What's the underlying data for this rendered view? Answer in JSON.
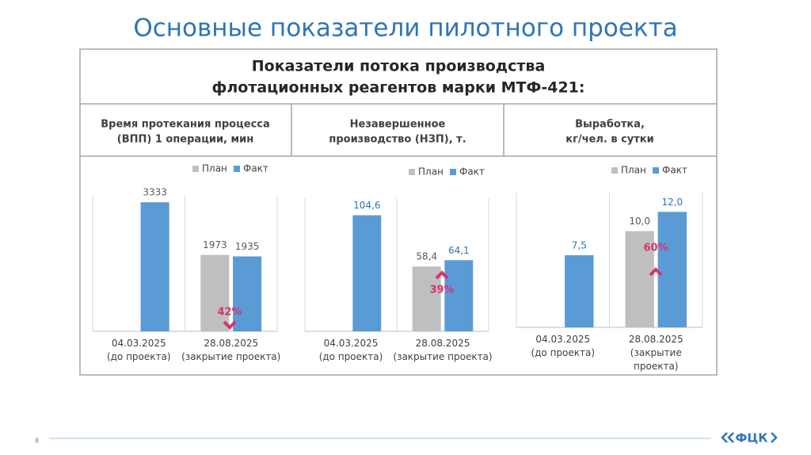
{
  "title": "Основные показатели пилотного проекта",
  "table": {
    "title": [
      "Показатели потока производства",
      "флотационных реагентов марки МТФ-421:"
    ],
    "columns": [
      [
        "Время протекания процесса",
        "(ВПП) 1 операции, мин"
      ],
      [
        "Незавершенное",
        "производство (НЗП), т."
      ],
      [
        "Выработка,",
        "кг/чел. в сутки"
      ]
    ]
  },
  "page_number": "8",
  "logo": "ФЦК",
  "chart_data": [
    {
      "type": "bar",
      "categories": [
        "04.03.2025\n(до проекта)",
        "28.08.2025\n(закрытие проекта)"
      ],
      "series": [
        {
          "name": "План",
          "color": "#bfbfbf",
          "values": [
            null,
            1973
          ]
        },
        {
          "name": "Факт",
          "color": "#5b9bd5",
          "values": [
            3333,
            1935
          ]
        }
      ],
      "ylim": [
        0,
        3500
      ],
      "annotation": "42%"
    },
    {
      "type": "bar",
      "categories": [
        "04.03.2025\n(до проекта)",
        "28.08.2025\n(закрытие проекта)"
      ],
      "series": [
        {
          "name": "План",
          "color": "#bfbfbf",
          "values": [
            null,
            58.4
          ],
          "value_labels": [
            null,
            "58,4"
          ]
        },
        {
          "name": "Факт",
          "color": "#5b9bd5",
          "values": [
            104.6,
            64.1
          ],
          "value_labels": [
            "104,6",
            "64,1"
          ]
        }
      ],
      "ylim": [
        0,
        120
      ],
      "annotation": "39%"
    },
    {
      "type": "bar",
      "categories": [
        "04.03.2025\n(до проекта)",
        "28.08.2025\n(закрытие\nпроекта)"
      ],
      "series": [
        {
          "name": "План",
          "color": "#bfbfbf",
          "values": [
            null,
            10.0
          ],
          "value_labels": [
            null,
            "10,0"
          ]
        },
        {
          "name": "Факт",
          "color": "#5b9bd5",
          "values": [
            7.5,
            12.0
          ],
          "value_labels": [
            "7,5",
            "12,0"
          ]
        }
      ],
      "ylim": [
        0,
        14
      ],
      "annotation": "60%"
    }
  ]
}
